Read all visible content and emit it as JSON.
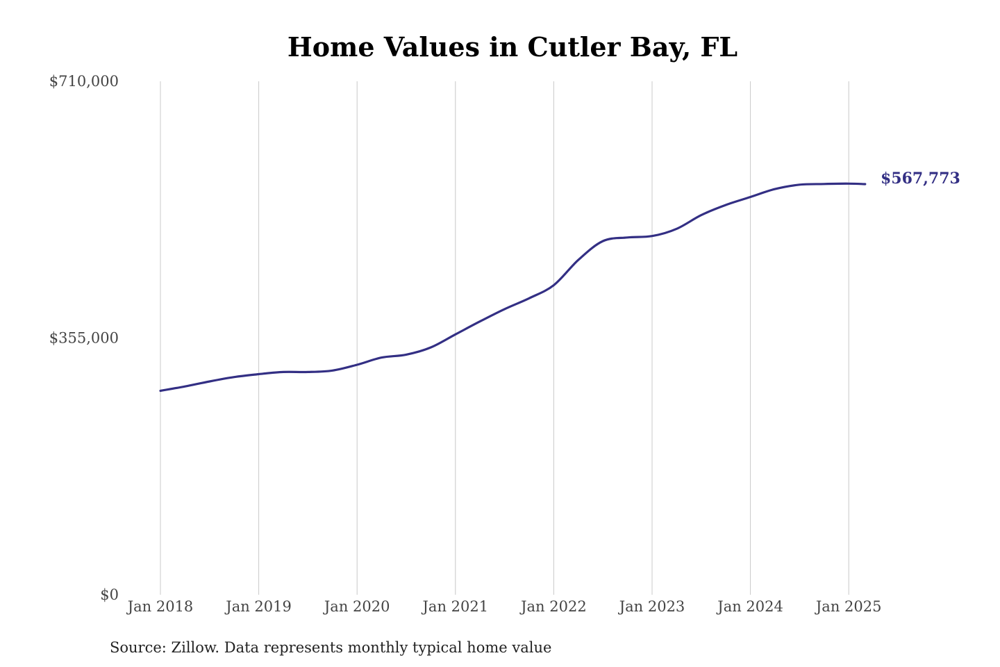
{
  "colors": {
    "line": "#332f84",
    "grid": "#c8c8c8",
    "tick_text": "#444444",
    "title_text": "#000000"
  },
  "chart_data": {
    "type": "line",
    "title": "Home Values in Cutler Bay, FL",
    "xlabel": "",
    "ylabel": "",
    "ylim": [
      0,
      710000
    ],
    "y_ticks": [
      {
        "value": 0,
        "label": "$0"
      },
      {
        "value": 355000,
        "label": "$355,000"
      },
      {
        "value": 710000,
        "label": "$710,000"
      }
    ],
    "x_ticks": [
      {
        "value": "2018-01",
        "label": "Jan 2018"
      },
      {
        "value": "2019-01",
        "label": "Jan 2019"
      },
      {
        "value": "2020-01",
        "label": "Jan 2020"
      },
      {
        "value": "2021-01",
        "label": "Jan 2021"
      },
      {
        "value": "2022-01",
        "label": "Jan 2022"
      },
      {
        "value": "2023-01",
        "label": "Jan 2023"
      },
      {
        "value": "2024-01",
        "label": "Jan 2024"
      },
      {
        "value": "2025-01",
        "label": "Jan 2025"
      }
    ],
    "grid": {
      "vertical": true,
      "horizontal": false
    },
    "series": [
      {
        "points": [
          {
            "x": "2018-01",
            "y": 282000
          },
          {
            "x": "2018-04",
            "y": 288000
          },
          {
            "x": "2018-07",
            "y": 295000
          },
          {
            "x": "2018-10",
            "y": 301000
          },
          {
            "x": "2019-01",
            "y": 305000
          },
          {
            "x": "2019-04",
            "y": 308000
          },
          {
            "x": "2019-07",
            "y": 308000
          },
          {
            "x": "2019-10",
            "y": 310000
          },
          {
            "x": "2020-01",
            "y": 318000
          },
          {
            "x": "2020-04",
            "y": 328000
          },
          {
            "x": "2020-07",
            "y": 332000
          },
          {
            "x": "2020-10",
            "y": 342000
          },
          {
            "x": "2021-01",
            "y": 360000
          },
          {
            "x": "2021-04",
            "y": 378000
          },
          {
            "x": "2021-07",
            "y": 395000
          },
          {
            "x": "2021-10",
            "y": 410000
          },
          {
            "x": "2022-01",
            "y": 428000
          },
          {
            "x": "2022-04",
            "y": 463000
          },
          {
            "x": "2022-07",
            "y": 489000
          },
          {
            "x": "2022-10",
            "y": 494000
          },
          {
            "x": "2023-01",
            "y": 496000
          },
          {
            "x": "2023-04",
            "y": 506000
          },
          {
            "x": "2023-07",
            "y": 525000
          },
          {
            "x": "2023-10",
            "y": 539000
          },
          {
            "x": "2024-01",
            "y": 550000
          },
          {
            "x": "2024-04",
            "y": 561000
          },
          {
            "x": "2024-07",
            "y": 567000
          },
          {
            "x": "2024-10",
            "y": 568000
          },
          {
            "x": "2025-01",
            "y": 568500
          },
          {
            "x": "2025-03",
            "y": 567773
          }
        ]
      }
    ],
    "end_label": "$567,773",
    "source": "Source: Zillow. Data represents monthly typical home value"
  }
}
